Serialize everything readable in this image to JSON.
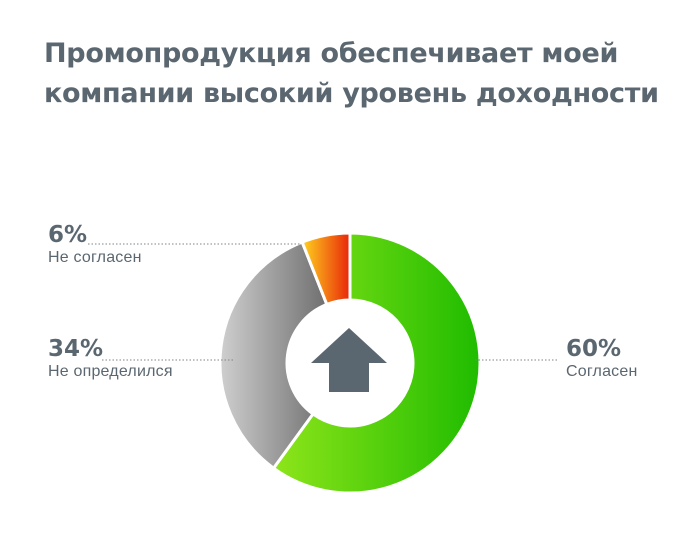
{
  "title_lines": [
    "Промопродукция обеспечивает моей",
    "компании высокий уровень доходности"
  ],
  "chart_data": {
    "type": "pie",
    "title": "Промопродукция обеспечивает моей компании высокий уровень доходности",
    "categories": [
      "Согласен",
      "Не определился",
      "Не согласен"
    ],
    "values": [
      60,
      34,
      6
    ],
    "value_labels": [
      "60%",
      "34%",
      "6%"
    ],
    "donut": true,
    "center_icon": "up-arrow-icon",
    "colors": [
      [
        "#8ee51a",
        "#1fbc00"
      ],
      [
        "#cfcfcf",
        "#6f6f6f"
      ],
      [
        "#ffd21e",
        "#e8260a"
      ]
    ],
    "legend": "none"
  },
  "colors": {
    "text": "#5b6770",
    "arrow": "#5b6770"
  }
}
